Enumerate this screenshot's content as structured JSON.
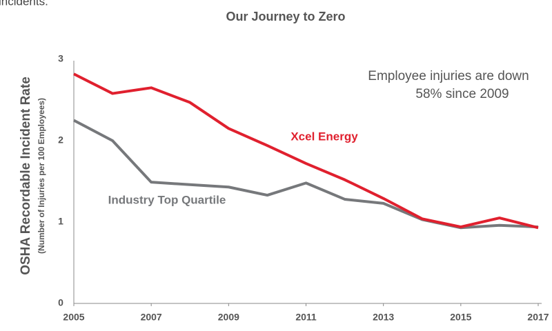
{
  "header_note": "incidents.",
  "chart_data": {
    "type": "line",
    "title": "Our Journey to Zero",
    "y_label": "OSHA Recordable Incident Rate",
    "y_sublabel": "(Number of Injuries per 100 Employees)",
    "annotation": [
      "Employee injuries are down",
      "58% since 2009"
    ],
    "x": [
      2005,
      2006,
      2007,
      2008,
      2009,
      2010,
      2011,
      2012,
      2013,
      2014,
      2015,
      2016,
      2017
    ],
    "series": [
      {
        "name": "Industry Top Quartile",
        "color": "#76787b",
        "values": [
          2.25,
          2.0,
          1.49,
          1.46,
          1.43,
          1.33,
          1.48,
          1.28,
          1.23,
          1.03,
          0.93,
          0.96,
          0.94
        ]
      },
      {
        "name": "Xcel Energy",
        "color": "#e0202e",
        "values": [
          2.82,
          2.58,
          2.65,
          2.47,
          2.15,
          1.94,
          1.72,
          1.52,
          1.29,
          1.04,
          0.94,
          1.05,
          0.93
        ]
      }
    ],
    "xlim": [
      2005,
      2017
    ],
    "xticks": [
      2005,
      2007,
      2009,
      2011,
      2013,
      2015,
      2017
    ],
    "ylim": [
      0,
      3
    ],
    "yticks": [
      0,
      1,
      2,
      3
    ],
    "grid": false
  }
}
